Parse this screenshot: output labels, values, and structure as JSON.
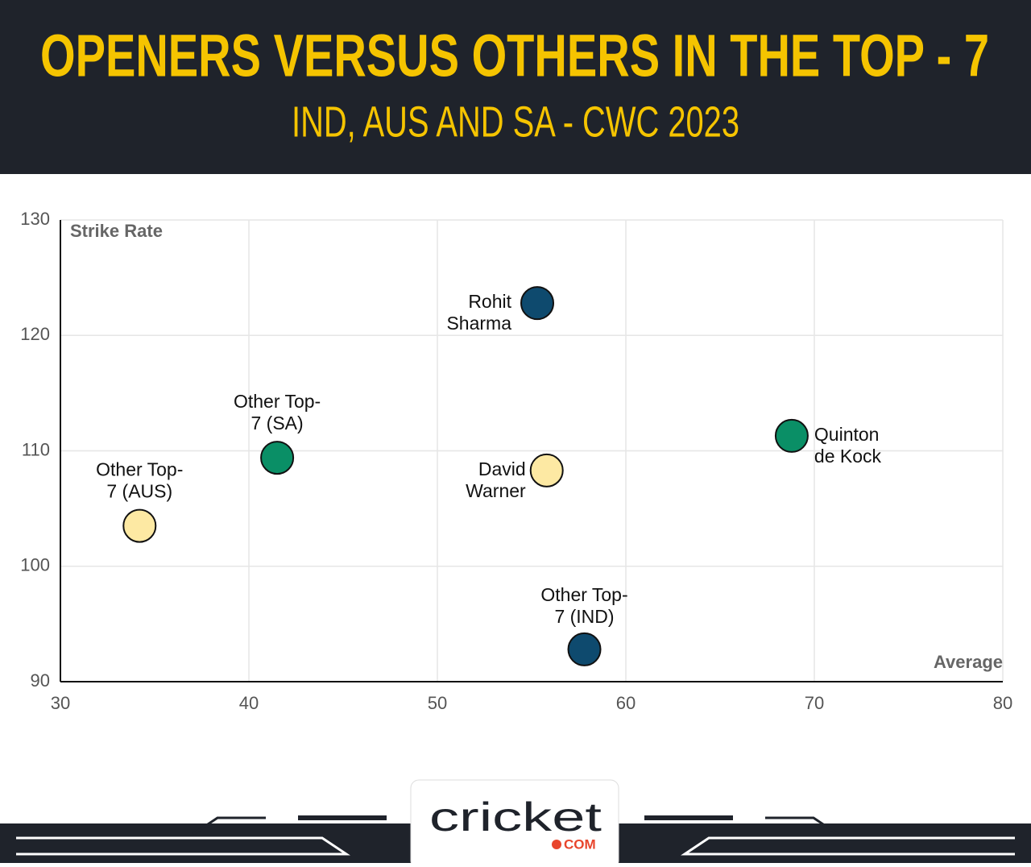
{
  "header": {
    "title": "OPENERS VERSUS OTHERS IN THE TOP - 7",
    "subtitle": "IND, AUS AND SA - CWC 2023"
  },
  "chart_data": {
    "type": "scatter",
    "x_label": "Average",
    "y_label": "Strike Rate",
    "x": [
      55.3,
      68.8,
      41.5,
      55.8,
      34.2,
      57.8
    ],
    "values": [
      122.8,
      111.3,
      109.4,
      108.3,
      103.5,
      92.8
    ],
    "point_labels": [
      [
        "Rohit",
        "Sharma"
      ],
      [
        "Quinton",
        "de Kock"
      ],
      [
        "Other Top-",
        "7 (SA)"
      ],
      [
        "David",
        "Warner"
      ],
      [
        "Other Top-",
        "7 (AUS)"
      ],
      [
        "Other Top-",
        "7 (IND)"
      ]
    ],
    "colors": [
      "#0e4a6e",
      "#0a8f66",
      "#0a8f66",
      "#fde9a3",
      "#fde9a3",
      "#0e4a6e"
    ],
    "xlim": [
      30,
      80
    ],
    "ylim": [
      90,
      130
    ],
    "xticks": [
      30,
      40,
      50,
      60,
      70,
      80
    ],
    "yticks": [
      90,
      100,
      110,
      120,
      130
    ],
    "grid": true
  },
  "footer": {
    "brand": "cricket",
    "domain": "COM"
  }
}
